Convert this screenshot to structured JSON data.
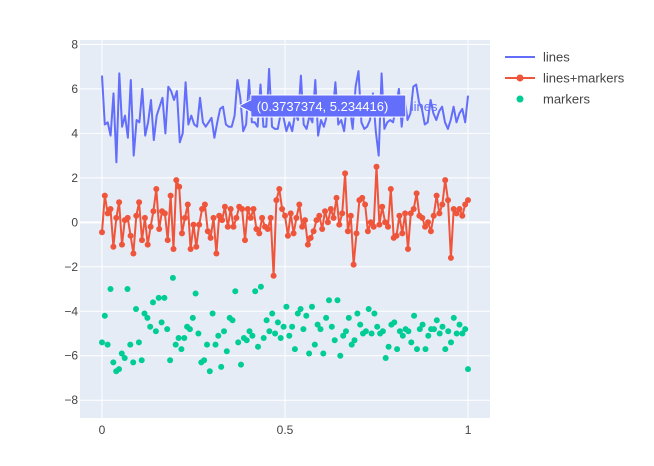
{
  "colors": {
    "background": "#ffffff",
    "plot_background": "#e5ecf6",
    "grid": "#ffffff",
    "tick_text": "#444444",
    "lines": "#636efa",
    "lines_markers": "#ef553b",
    "markers": "#00cc96",
    "hover_text_light": "#ffffff"
  },
  "chart_data": {
    "type": "scatter",
    "title": "",
    "xlabel": "",
    "ylabel": "",
    "xlim": [
      -0.06,
      1.06
    ],
    "ylim": [
      -8.8,
      8.2
    ],
    "xticks": [
      0,
      0.5,
      1
    ],
    "xtick_labels": [
      "0",
      "0.5",
      "1"
    ],
    "yticks": [
      -8,
      -6,
      -4,
      -2,
      0,
      2,
      4,
      6,
      8
    ],
    "ytick_labels": [
      "−8",
      "−6",
      "−4",
      "−2",
      "0",
      "2",
      "4",
      "6",
      "8"
    ],
    "grid": true,
    "legend_position": "top-right",
    "series": [
      {
        "name": "lines",
        "mode": "lines",
        "y": [
          6.6,
          4.4,
          4.5,
          3.9,
          5.8,
          2.7,
          6.7,
          4.3,
          4.8,
          3.8,
          6.4,
          3.0,
          4.6,
          4.5,
          6.0,
          3.9,
          4.5,
          5.5,
          3.7,
          4.8,
          5.2,
          5.6,
          4.0,
          6.1,
          5.9,
          5.5,
          5.9,
          3.6,
          4.0,
          6.3,
          4.4,
          4.8,
          4.4,
          4.3,
          5.6,
          4.5,
          4.3,
          4.5,
          4.7,
          3.8,
          4.5,
          5.1,
          5.2,
          4.4,
          4.3,
          4.3,
          4.8,
          6.4,
          5.6,
          4.1,
          4.4,
          6.4,
          4.5,
          4.5,
          4.3,
          6.2,
          4.3,
          4.3,
          6.9,
          4.3,
          4.2,
          4.2,
          4.9,
          4.7,
          4.1,
          4.5,
          4.1,
          4.9,
          4.6,
          6.6,
          4.4,
          4.2,
          4.8,
          4.5,
          6.4,
          3.9,
          4.6,
          4.3,
          4.8,
          5.7,
          4.9,
          6.3,
          4.4,
          4.6,
          4.1,
          5.3,
          5.1,
          4.2,
          6.1,
          6.8,
          4.5,
          4.2,
          4.3,
          4.6,
          5.8,
          4.1,
          3.0,
          6.7,
          4.2,
          4.5,
          4.6,
          4.5,
          5.2,
          6.0,
          4.3,
          5.6,
          4.6,
          4.9,
          6.1,
          6.2,
          5.4,
          5.1,
          4.4,
          4.5,
          5.5,
          4.9,
          4.6,
          5.0,
          5.2,
          4.5,
          4.2,
          4.6,
          5.2,
          4.5,
          4.9,
          5.1,
          4.5,
          5.7
        ],
        "y_note": "values approximated from the rendered trace"
      },
      {
        "name": "lines+markers",
        "mode": "lines+markers",
        "y": [
          -0.45,
          1.2,
          0.4,
          0.6,
          -1.1,
          0.2,
          0.9,
          -1.0,
          0.1,
          0.2,
          -0.6,
          -1.4,
          0.3,
          0.9,
          -0.8,
          0.2,
          -1.0,
          -0.2,
          0.5,
          1.5,
          -0.3,
          0.5,
          0.4,
          -0.8,
          1.2,
          -1.2,
          1.9,
          1.6,
          -0.5,
          0.2,
          0.8,
          -1.2,
          -0.1,
          -1.1,
          -0.1,
          0.6,
          0.8,
          -0.4,
          -0.7,
          0.2,
          -1.4,
          0.3,
          0.1,
          0.7,
          -0.2,
          0.6,
          -0.2,
          0.2,
          0.7,
          0.6,
          -0.8,
          0.6,
          0.2,
          0.6,
          -0.3,
          -0.5,
          0.2,
          -0.2,
          -0.3,
          0.2,
          -2.4,
          1.0,
          1.5,
          0.6,
          0.3,
          -0.6,
          0.4,
          -0.5,
          0.2,
          0.8,
          -0.2,
          0.1,
          -1.0,
          -0.7,
          -0.4,
          0.1,
          0.3,
          -0.3,
          0.5,
          0.0,
          0.6,
          0.2,
          1.1,
          -0.1,
          0.4,
          2.2,
          -0.4,
          0.3,
          -1.9,
          -0.5,
          1.0,
          1.1,
          0.8,
          -0.4,
          0.0,
          -0.2,
          2.5,
          -0.1,
          0.7,
          0.0,
          -0.2,
          1.5,
          -0.7,
          -0.6,
          0.3,
          -0.5,
          0.4,
          -1.2,
          0.4,
          0.6,
          1.3,
          0.3,
          0.2,
          -0.2,
          0.0,
          -0.4,
          0.3,
          1.2,
          0.4,
          0.8,
          1.9,
          1.0,
          -1.6,
          0.6,
          0.4,
          0.6,
          0.3,
          0.8,
          1.0
        ],
        "y_note": "values approximated from the rendered trace"
      },
      {
        "name": "markers",
        "mode": "markers",
        "y": [
          -5.4,
          -4.2,
          -5.5,
          -3.0,
          -6.3,
          -6.7,
          -6.6,
          -5.9,
          -6.1,
          -3.0,
          -5.5,
          -6.3,
          -3.9,
          -5.4,
          -6.2,
          -4.1,
          -4.3,
          -4.7,
          -3.6,
          -4.9,
          -3.4,
          -4.5,
          -3.4,
          -4.8,
          -6.2,
          -2.5,
          -5.5,
          -5.2,
          -5.7,
          -5.2,
          -4.7,
          -4.8,
          -4.3,
          -3.2,
          -5.0,
          -6.3,
          -6.2,
          -5.5,
          -6.7,
          -4.1,
          -5.5,
          -5.1,
          -6.5,
          -4.9,
          -5.8,
          -4.3,
          -4.4,
          -3.1,
          -5.4,
          -6.4,
          -5.2,
          -5.3,
          -4.9,
          -5.1,
          -3.1,
          -5.6,
          -2.9,
          -5.2,
          -4.4,
          -4.9,
          -4.1,
          -5.0,
          -4.5,
          -5.2,
          -4.7,
          -3.8,
          -5.1,
          -4.7,
          -5.7,
          -4.1,
          -3.9,
          -4.8,
          -4.2,
          -5.9,
          -3.8,
          -5.5,
          -4.6,
          -4.8,
          -5.9,
          -4.3,
          -3.5,
          -4.7,
          -5.3,
          -3.5,
          -6.0,
          -5.1,
          -4.9,
          -4.3,
          -5.5,
          -5.3,
          -4.1,
          -4.6,
          -5.0,
          -4.9,
          -3.9,
          -5.0,
          -4.1,
          -4.7,
          -5.0,
          -4.9,
          -6.1,
          -5.6,
          -4.6,
          -4.5,
          -5.7,
          -4.9,
          -5.1,
          -4.8,
          -4.9,
          -5.4,
          -4.2,
          -5.7,
          -4.8,
          -4.6,
          -5.7,
          -5.1,
          -4.8,
          -4.8,
          -4.4,
          -5.0,
          -4.7,
          -5.7,
          -4.9,
          -5.4,
          -4.3,
          -5.0,
          -4.6,
          -5.0,
          -4.8,
          -6.6
        ],
        "y_note": "values approximated from the rendered markers"
      }
    ],
    "hover": {
      "series": "lines",
      "x": 0.3737374,
      "y": 5.234416,
      "label": "(0.3737374, 5.234416)"
    }
  }
}
